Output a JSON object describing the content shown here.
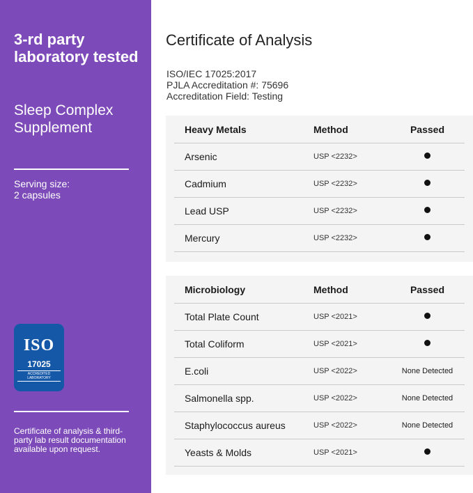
{
  "sidebar": {
    "heading": "3-rd party laboratory tested",
    "product": "Sleep Complex Supplement",
    "serving": "Serving size:\n2 capsules",
    "badge": {
      "org": "International Organization for Standardization",
      "logo": "ISO",
      "number": "17025",
      "label": "ACCREDITED LABORATORY",
      "color": "#1658a8"
    },
    "footer": "Certificate of analysis & third-party lab result documentation available upon request.",
    "color": "#7d4bb9"
  },
  "main": {
    "title": "Certificate of Analysis",
    "meta": [
      "ISO/IEC 17025:2017",
      "PJLA Accreditation #: 75696",
      "Accreditation Field: Testing"
    ],
    "tables": [
      {
        "header": [
          "Heavy Metals",
          "Method",
          "Passed"
        ],
        "rows": [
          [
            "Arsenic",
            "USP <2232>",
            "dot"
          ],
          [
            "Cadmium",
            "USP <2232>",
            "dot"
          ],
          [
            "Lead USP",
            "USP <2232>",
            "dot"
          ],
          [
            "Mercury",
            "USP <2232>",
            "dot"
          ]
        ]
      },
      {
        "header": [
          "Microbiology",
          "Method",
          "Passed"
        ],
        "rows": [
          [
            "Total Plate Count",
            "USP <2021>",
            "dot"
          ],
          [
            "Total Coliform",
            "USP <2021>",
            "dot"
          ],
          [
            "E.coli",
            "USP <2022>",
            "None Detected"
          ],
          [
            "Salmonella spp.",
            "USP <2022>",
            "None Detected"
          ],
          [
            "Staphylococcus aureus",
            "USP <2022>",
            "None Detected"
          ],
          [
            "Yeasts & Molds",
            "USP <2021>",
            "dot"
          ]
        ]
      }
    ]
  }
}
